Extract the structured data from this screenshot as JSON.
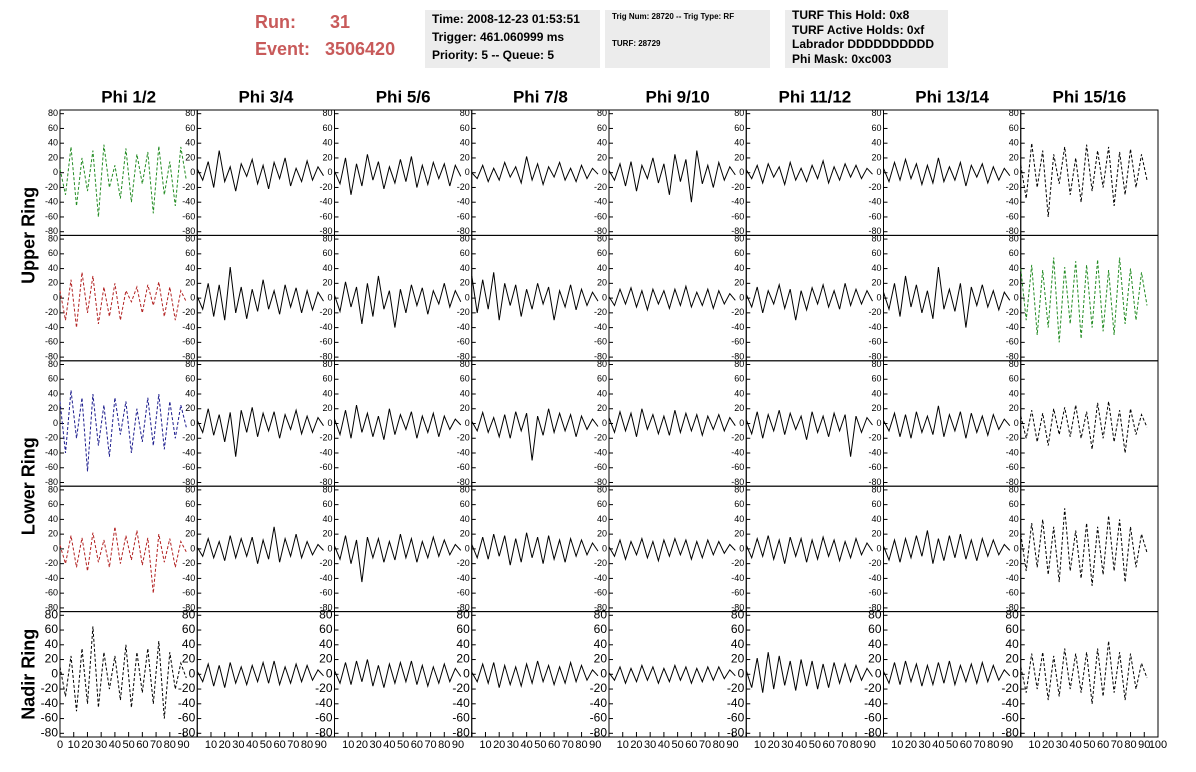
{
  "header": {
    "run_label": "Run:",
    "run": "31",
    "event_label": "Event:",
    "event": "3506420"
  },
  "info": [
    [
      "Time: 2008-12-23 01:53:51",
      "Trigger: 461.060999 ms",
      "Priority: 5 -- Queue: 5"
    ],
    [
      "Trig Num: 28720 -- Trig Type: RF",
      "TURF: 28729"
    ],
    [
      "TURF This Hold: 0x8",
      "TURF Active Holds: 0xf",
      "Labrador DDDDDDDDDD",
      "Phi Mask: 0xc003"
    ]
  ],
  "chart_data": {
    "type": "line",
    "columns": [
      "Phi 1/2",
      "Phi 3/4",
      "Phi 5/6",
      "Phi 7/8",
      "Phi 9/10",
      "Phi 11/12",
      "Phi 13/14",
      "Phi 15/16"
    ],
    "row_labels": [
      "Upper Ring",
      "Lower Ring",
      "Nadir Ring"
    ],
    "xlim": [
      0,
      100
    ],
    "xticks": [
      0,
      10,
      20,
      30,
      40,
      50,
      60,
      70,
      80,
      90,
      100
    ],
    "ylim": [
      -85,
      85
    ],
    "yticks": [
      -80,
      -60,
      -40,
      -20,
      0,
      20,
      40,
      60,
      80
    ],
    "x": [
      0,
      4,
      8,
      12,
      16,
      20,
      24,
      28,
      32,
      36,
      40,
      44,
      48,
      52,
      56,
      60,
      64,
      68,
      72,
      76,
      80,
      84,
      88,
      92
    ],
    "series": [
      {
        "color": "#228b22",
        "dashed": true,
        "values": [
          5,
          -30,
          35,
          -45,
          20,
          -25,
          30,
          -60,
          38,
          -20,
          10,
          -35,
          33,
          -40,
          25,
          -15,
          28,
          -55,
          36,
          -30,
          15,
          -45,
          35,
          -10
        ]
      },
      {
        "color": "#000000",
        "dashed": false,
        "values": [
          5,
          -10,
          15,
          -20,
          30,
          -12,
          8,
          -25,
          12,
          -5,
          18,
          -15,
          10,
          -22,
          14,
          -8,
          20,
          -18,
          6,
          -12,
          16,
          -10,
          8,
          -4
        ]
      },
      {
        "color": "#000000",
        "dashed": false,
        "values": [
          2,
          -15,
          20,
          -30,
          12,
          -18,
          25,
          -10,
          15,
          -22,
          8,
          -14,
          18,
          -12,
          22,
          -20,
          10,
          -16,
          14,
          -8,
          12,
          -18,
          10,
          -5
        ]
      },
      {
        "color": "#000000",
        "dashed": false,
        "values": [
          0,
          -8,
          10,
          -12,
          6,
          -10,
          14,
          -6,
          8,
          -14,
          22,
          -10,
          12,
          -16,
          8,
          -6,
          14,
          -10,
          6,
          -12,
          10,
          -8,
          6,
          -2
        ]
      },
      {
        "color": "#000000",
        "dashed": false,
        "values": [
          3,
          -10,
          12,
          -18,
          15,
          -25,
          10,
          -8,
          20,
          -14,
          12,
          -30,
          25,
          -12,
          18,
          -40,
          30,
          -15,
          10,
          -20,
          14,
          -10,
          8,
          -3
        ]
      },
      {
        "color": "#000000",
        "dashed": false,
        "values": [
          4,
          -8,
          10,
          -14,
          12,
          -6,
          8,
          -16,
          14,
          -10,
          6,
          -12,
          10,
          -8,
          16,
          -14,
          8,
          -10,
          12,
          -6,
          10,
          -8,
          6,
          -2
        ]
      },
      {
        "color": "#000000",
        "dashed": false,
        "values": [
          6,
          -12,
          14,
          -10,
          18,
          -8,
          12,
          -16,
          10,
          -14,
          20,
          -12,
          8,
          -10,
          14,
          -18,
          10,
          -6,
          12,
          -14,
          8,
          -10,
          6,
          -4
        ]
      },
      {
        "color": "#000000",
        "dashed": true,
        "values": [
          10,
          -35,
          40,
          -20,
          30,
          -60,
          25,
          -15,
          35,
          -30,
          20,
          -40,
          38,
          -25,
          30,
          -20,
          35,
          -45,
          28,
          -30,
          32,
          -20,
          25,
          -10
        ]
      },
      {
        "color": "#b22222",
        "dashed": true,
        "values": [
          10,
          -30,
          25,
          -40,
          35,
          -20,
          30,
          -35,
          15,
          -25,
          20,
          -30,
          10,
          -5,
          15,
          -20,
          18,
          -10,
          22,
          -25,
          15,
          -30,
          10,
          -5
        ]
      },
      {
        "color": "#000000",
        "dashed": false,
        "values": [
          2,
          -15,
          20,
          -25,
          18,
          -30,
          42,
          -20,
          15,
          -28,
          12,
          -18,
          25,
          -15,
          10,
          -22,
          18,
          -12,
          14,
          -20,
          10,
          -16,
          8,
          -4
        ]
      },
      {
        "color": "#000000",
        "dashed": false,
        "values": [
          4,
          -18,
          22,
          -12,
          15,
          -35,
          20,
          -25,
          30,
          -15,
          10,
          -40,
          12,
          -20,
          18,
          -10,
          14,
          -22,
          10,
          -8,
          20,
          -12,
          10,
          -5
        ]
      },
      {
        "color": "#000000",
        "dashed": false,
        "values": [
          30,
          -20,
          25,
          -15,
          35,
          -30,
          20,
          -10,
          18,
          -25,
          12,
          -15,
          20,
          -8,
          15,
          -30,
          10,
          -12,
          18,
          -16,
          12,
          -10,
          8,
          -4
        ]
      },
      {
        "color": "#000000",
        "dashed": false,
        "values": [
          2,
          -10,
          12,
          -8,
          14,
          -12,
          10,
          -16,
          12,
          -8,
          10,
          -14,
          12,
          -10,
          16,
          -12,
          8,
          -10,
          12,
          -14,
          10,
          -8,
          6,
          -3
        ]
      },
      {
        "color": "#000000",
        "dashed": false,
        "values": [
          5,
          -12,
          15,
          -20,
          10,
          -8,
          18,
          -14,
          12,
          -30,
          10,
          -16,
          14,
          -8,
          18,
          -12,
          10,
          -15,
          20,
          -10,
          12,
          -8,
          10,
          -4
        ]
      },
      {
        "color": "#000000",
        "dashed": false,
        "values": [
          8,
          -15,
          20,
          -25,
          30,
          -12,
          18,
          -20,
          10,
          -28,
          42,
          -15,
          12,
          -18,
          20,
          -40,
          15,
          -10,
          18,
          -12,
          10,
          -16,
          8,
          -3
        ]
      },
      {
        "color": "#228b22",
        "dashed": true,
        "values": [
          40,
          -30,
          45,
          -50,
          38,
          -40,
          55,
          -60,
          42,
          -35,
          50,
          -55,
          45,
          -40,
          52,
          -45,
          38,
          -50,
          55,
          -35,
          40,
          -30,
          35,
          -10
        ]
      },
      {
        "color": "#1a1a8c",
        "dashed": true,
        "values": [
          30,
          -40,
          45,
          -20,
          35,
          -65,
          40,
          -30,
          25,
          -45,
          35,
          -15,
          30,
          -40,
          20,
          -25,
          35,
          -30,
          40,
          -35,
          30,
          -20,
          25,
          -5
        ]
      },
      {
        "color": "#000000",
        "dashed": false,
        "values": [
          4,
          -12,
          20,
          -16,
          12,
          -25,
          15,
          -45,
          18,
          -12,
          22,
          -18,
          14,
          -10,
          16,
          -20,
          12,
          -8,
          18,
          -14,
          10,
          -12,
          8,
          -3
        ]
      },
      {
        "color": "#000000",
        "dashed": false,
        "values": [
          6,
          -15,
          18,
          -20,
          25,
          -12,
          14,
          -18,
          10,
          -22,
          20,
          -15,
          12,
          -8,
          16,
          -20,
          10,
          -12,
          14,
          -18,
          10,
          -8,
          6,
          -2
        ]
      },
      {
        "color": "#000000",
        "dashed": false,
        "values": [
          3,
          -10,
          15,
          -12,
          8,
          -18,
          12,
          -20,
          16,
          -10,
          14,
          -50,
          10,
          -16,
          20,
          -12,
          14,
          -10,
          12,
          -18,
          10,
          -8,
          6,
          -4
        ]
      },
      {
        "color": "#000000",
        "dashed": false,
        "values": [
          8,
          -12,
          16,
          -10,
          14,
          -18,
          20,
          -8,
          12,
          -14,
          10,
          -16,
          18,
          -12,
          14,
          -10,
          12,
          -16,
          10,
          -8,
          12,
          -10,
          8,
          -3
        ]
      },
      {
        "color": "#000000",
        "dashed": false,
        "values": [
          5,
          -14,
          16,
          -20,
          12,
          -10,
          18,
          -15,
          14,
          -8,
          10,
          -22,
          16,
          -12,
          10,
          -18,
          14,
          -10,
          12,
          -45,
          10,
          -12,
          8,
          -2
        ]
      },
      {
        "color": "#000000",
        "dashed": false,
        "values": [
          4,
          -10,
          14,
          -18,
          12,
          -20,
          16,
          -12,
          10,
          -15,
          24,
          -18,
          12,
          -10,
          16,
          -20,
          14,
          -12,
          10,
          -16,
          12,
          -8,
          6,
          -3
        ]
      },
      {
        "color": "#000000",
        "dashed": true,
        "values": [
          10,
          -20,
          18,
          -25,
          14,
          -30,
          20,
          -15,
          22,
          -18,
          25,
          -20,
          16,
          -35,
          28,
          -20,
          30,
          -25,
          18,
          -40,
          20,
          -15,
          12,
          -5
        ]
      },
      {
        "color": "#b22222",
        "dashed": true,
        "values": [
          5,
          -20,
          18,
          -25,
          15,
          -30,
          22,
          -18,
          12,
          -25,
          30,
          -20,
          18,
          -15,
          25,
          -22,
          15,
          -60,
          20,
          -18,
          14,
          -25,
          10,
          -4
        ]
      },
      {
        "color": "#000000",
        "dashed": false,
        "values": [
          2,
          -10,
          14,
          -12,
          10,
          -16,
          18,
          -12,
          14,
          -10,
          16,
          -20,
          12,
          -14,
          30,
          -18,
          14,
          -10,
          20,
          -12,
          10,
          -8,
          6,
          -2
        ]
      },
      {
        "color": "#000000",
        "dashed": false,
        "values": [
          4,
          -14,
          18,
          -20,
          12,
          -45,
          16,
          -12,
          14,
          -18,
          10,
          -15,
          20,
          -12,
          14,
          -18,
          10,
          -12,
          16,
          -10,
          12,
          -8,
          6,
          -2
        ]
      },
      {
        "color": "#000000",
        "dashed": false,
        "values": [
          6,
          -12,
          16,
          -14,
          20,
          -10,
          18,
          -22,
          14,
          -18,
          22,
          -12,
          16,
          -20,
          18,
          -14,
          12,
          -18,
          14,
          -10,
          12,
          -8,
          8,
          -3
        ]
      },
      {
        "color": "#000000",
        "dashed": false,
        "values": [
          3,
          -10,
          12,
          -14,
          10,
          -8,
          14,
          -12,
          10,
          -16,
          12,
          -10,
          14,
          -8,
          12,
          -14,
          10,
          -12,
          12,
          -8,
          10,
          -6,
          6,
          -2
        ]
      },
      {
        "color": "#000000",
        "dashed": false,
        "values": [
          5,
          -12,
          14,
          -10,
          18,
          -14,
          12,
          -20,
          16,
          -10,
          14,
          -18,
          12,
          -14,
          16,
          -10,
          12,
          -16,
          10,
          -12,
          14,
          -8,
          8,
          -3
        ]
      },
      {
        "color": "#000000",
        "dashed": false,
        "values": [
          4,
          -15,
          12,
          -18,
          14,
          -12,
          18,
          -10,
          25,
          -20,
          14,
          -16,
          18,
          -12,
          20,
          -14,
          12,
          -16,
          14,
          -10,
          12,
          -8,
          6,
          -2
        ]
      },
      {
        "color": "#000000",
        "dashed": true,
        "values": [
          20,
          -30,
          35,
          -25,
          40,
          -35,
          30,
          -45,
          55,
          -30,
          25,
          -40,
          35,
          -50,
          30,
          -35,
          45,
          -30,
          40,
          -45,
          30,
          -25,
          20,
          -5
        ]
      },
      {
        "color": "#000000",
        "dashed": true,
        "values": [
          10,
          -30,
          25,
          -50,
          35,
          -40,
          65,
          -45,
          30,
          -20,
          25,
          -35,
          40,
          -45,
          30,
          -25,
          35,
          -40,
          45,
          -60,
          30,
          -20,
          15,
          -5
        ]
      },
      {
        "color": "#000000",
        "dashed": false,
        "values": [
          4,
          -10,
          14,
          -16,
          12,
          -18,
          16,
          -12,
          10,
          -14,
          12,
          -10,
          16,
          -12,
          18,
          -14,
          10,
          -12,
          14,
          -10,
          12,
          -8,
          6,
          -2
        ]
      },
      {
        "color": "#000000",
        "dashed": false,
        "values": [
          5,
          -12,
          16,
          -14,
          18,
          -10,
          20,
          -16,
          12,
          -18,
          14,
          -12,
          16,
          -10,
          18,
          -14,
          12,
          -16,
          10,
          -12,
          14,
          -10,
          8,
          -3
        ]
      },
      {
        "color": "#000000",
        "dashed": false,
        "values": [
          3,
          -10,
          14,
          -12,
          16,
          -18,
          12,
          -14,
          10,
          -16,
          14,
          -12,
          18,
          -10,
          12,
          -14,
          10,
          -12,
          16,
          -10,
          12,
          -8,
          6,
          -2
        ]
      },
      {
        "color": "#000000",
        "dashed": false,
        "values": [
          2,
          -8,
          10,
          -12,
          8,
          -10,
          12,
          -8,
          10,
          -12,
          8,
          -10,
          12,
          -8,
          10,
          -12,
          8,
          -10,
          10,
          -8,
          10,
          -6,
          6,
          -2
        ]
      },
      {
        "color": "#000000",
        "dashed": false,
        "values": [
          5,
          -18,
          22,
          -25,
          30,
          -20,
          25,
          -15,
          18,
          -22,
          20,
          -16,
          18,
          -20,
          14,
          -18,
          16,
          -12,
          14,
          -10,
          12,
          -8,
          8,
          -3
        ]
      },
      {
        "color": "#000000",
        "dashed": false,
        "values": [
          4,
          -12,
          16,
          -14,
          18,
          -10,
          14,
          -16,
          12,
          -14,
          16,
          -12,
          18,
          -14,
          12,
          -10,
          14,
          -12,
          16,
          -10,
          12,
          -8,
          6,
          -2
        ]
      },
      {
        "color": "#000000",
        "dashed": true,
        "values": [
          10,
          -25,
          28,
          -20,
          30,
          -35,
          25,
          -30,
          35,
          -20,
          28,
          -25,
          30,
          -40,
          35,
          -30,
          45,
          -25,
          30,
          -35,
          28,
          -20,
          15,
          -5
        ]
      }
    ]
  }
}
